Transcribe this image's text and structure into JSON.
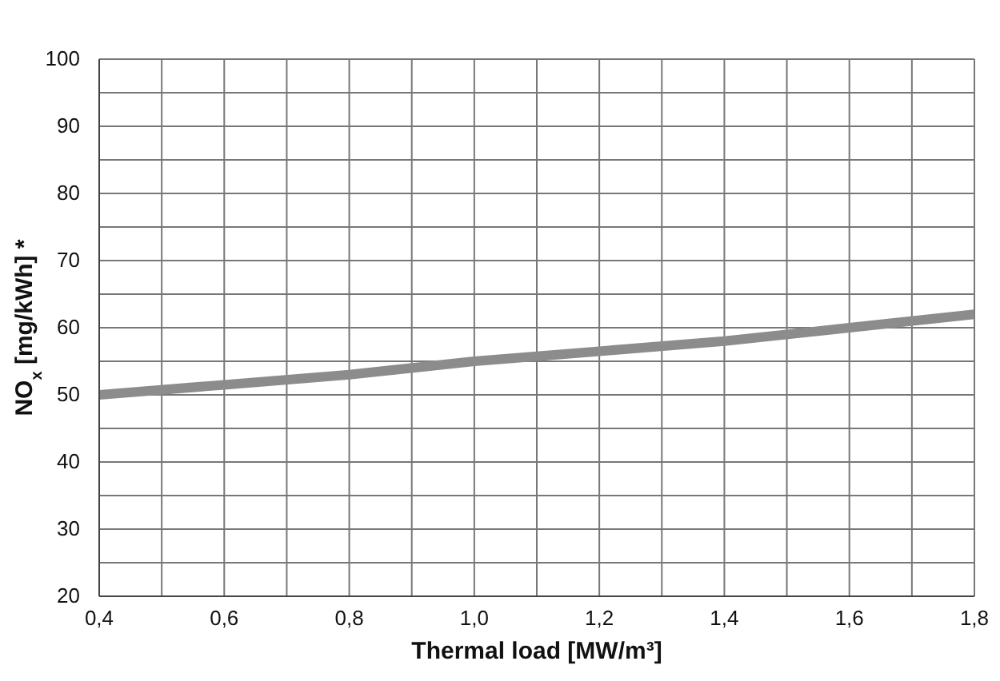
{
  "chart_data": {
    "type": "line",
    "xlabel": "Thermal load [MW/m³]",
    "ylabel": "NO$_{x}$ [mg/kWh] *",
    "x": [
      0.4,
      0.6,
      0.8,
      1.0,
      1.2,
      1.4,
      1.6,
      1.8
    ],
    "series": [
      {
        "color": "#8c8c8c",
        "values": [
          50,
          51.5,
          53,
          55,
          56.5,
          58,
          60,
          62
        ]
      }
    ],
    "xlim": [
      0.4,
      1.8
    ],
    "xticks": [
      {
        "value": 0.4,
        "label": "0,4"
      },
      {
        "value": 0.5,
        "label": null
      },
      {
        "value": 0.6,
        "label": "0,6"
      },
      {
        "value": 0.7,
        "label": null
      },
      {
        "value": 0.8,
        "label": "0,8"
      },
      {
        "value": 0.9,
        "label": null
      },
      {
        "value": 1.0,
        "label": "1,0"
      },
      {
        "value": 1.1,
        "label": null
      },
      {
        "value": 1.2,
        "label": "1,2"
      },
      {
        "value": 1.3,
        "label": null
      },
      {
        "value": 1.4,
        "label": "1,4"
      },
      {
        "value": 1.5,
        "label": null
      },
      {
        "value": 1.6,
        "label": "1,6"
      },
      {
        "value": 1.7,
        "label": null
      },
      {
        "value": 1.8,
        "label": "1,8"
      }
    ],
    "ylim": [
      20,
      100
    ],
    "yticks": [
      20,
      {
        "value": 25,
        "label": null
      },
      30,
      {
        "value": 35,
        "label": null
      },
      40,
      {
        "value": 45,
        "label": null
      },
      50,
      {
        "value": 55,
        "label": null
      },
      60,
      {
        "value": 65,
        "label": null
      },
      70,
      {
        "value": 75,
        "label": null
      },
      80,
      {
        "value": 85,
        "label": null
      },
      90,
      {
        "value": 95,
        "label": null
      },
      100
    ],
    "grid": true,
    "marker": "none",
    "line_style": "solid",
    "legend": false
  }
}
